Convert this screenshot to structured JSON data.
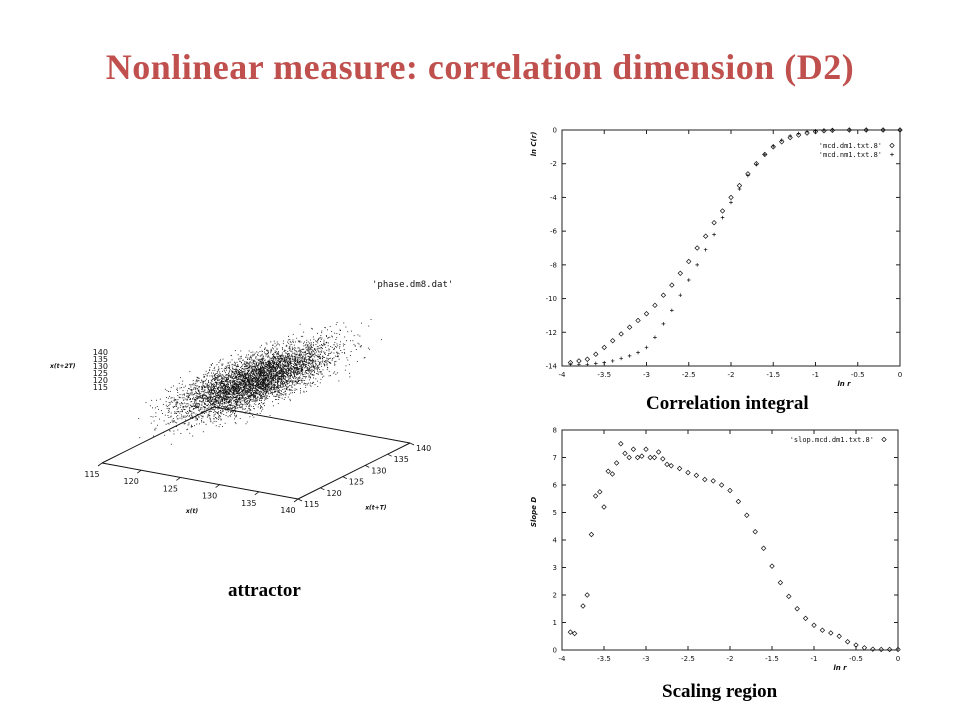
{
  "slide": {
    "title": "Nonlinear measure: correlation dimension (D2)",
    "captions": {
      "attractor": "attractor",
      "correlation": "Correlation integral",
      "scaling": "Scaling region"
    }
  },
  "colors": {
    "title": "#c0504d",
    "ink": "#111111"
  },
  "chart_data": [
    {
      "type": "scatter",
      "id": "attractor",
      "projection": "3d",
      "legend": [
        "'phase.dm8.dat'"
      ],
      "legend_position": "top-right",
      "xlabel": "x(t)",
      "ylabel": "x(t+T)",
      "zlabel": "x(t+2T)",
      "x_ticks": [
        115,
        120,
        125,
        130,
        135,
        140
      ],
      "y_ticks": [
        115,
        120,
        125,
        130,
        135,
        140
      ],
      "z_ticks": [
        115,
        120,
        125,
        130,
        135,
        140
      ],
      "xlim": [
        115,
        140
      ],
      "ylim": [
        115,
        140
      ],
      "zlim": [
        115,
        140
      ],
      "grid": false,
      "distribution": {
        "shape": "elongated diagonal cloud",
        "center": [
          129,
          129,
          129
        ],
        "spread_along_diagonal": 5.5,
        "spread_across": 2.2
      }
    },
    {
      "type": "scatter",
      "id": "correlation-integral",
      "xlabel": "ln r",
      "ylabel": "ln C(r)",
      "xlim": [
        -4,
        0
      ],
      "ylim": [
        -14,
        0
      ],
      "x_ticks": [
        "-4",
        "-3.5",
        "-3",
        "-2.5",
        "-2",
        "-1.5",
        "-1",
        "-0.5",
        "0"
      ],
      "y_ticks": [
        "0",
        "-2",
        "-4",
        "-6",
        "-8",
        "-10",
        "-12",
        "-14"
      ],
      "legend_position": "top-right",
      "grid": false,
      "series": [
        {
          "name": "'mcd.dm1.txt.8'",
          "marker": "diamond",
          "points": [
            [
              -3.9,
              -13.8
            ],
            [
              -3.8,
              -13.7
            ],
            [
              -3.7,
              -13.6
            ],
            [
              -3.6,
              -13.3
            ],
            [
              -3.5,
              -12.9
            ],
            [
              -3.4,
              -12.5
            ],
            [
              -3.3,
              -12.1
            ],
            [
              -3.2,
              -11.7
            ],
            [
              -3.1,
              -11.3
            ],
            [
              -3.0,
              -10.9
            ],
            [
              -2.9,
              -10.4
            ],
            [
              -2.8,
              -9.8
            ],
            [
              -2.7,
              -9.2
            ],
            [
              -2.6,
              -8.5
            ],
            [
              -2.5,
              -7.8
            ],
            [
              -2.4,
              -7.0
            ],
            [
              -2.3,
              -6.3
            ],
            [
              -2.2,
              -5.5
            ],
            [
              -2.1,
              -4.8
            ],
            [
              -2.0,
              -4.0
            ],
            [
              -1.9,
              -3.3
            ],
            [
              -1.8,
              -2.6
            ],
            [
              -1.7,
              -2.0
            ],
            [
              -1.6,
              -1.45
            ],
            [
              -1.5,
              -1.0
            ],
            [
              -1.4,
              -0.7
            ],
            [
              -1.3,
              -0.45
            ],
            [
              -1.2,
              -0.3
            ],
            [
              -1.1,
              -0.18
            ],
            [
              -1.0,
              -0.1
            ],
            [
              -0.9,
              -0.05
            ],
            [
              -0.8,
              -0.02
            ],
            [
              -0.6,
              0
            ],
            [
              -0.4,
              0
            ],
            [
              -0.2,
              0
            ],
            [
              0,
              0
            ]
          ]
        },
        {
          "name": "'mcd.nm1.txt.8'",
          "marker": "plus",
          "points": [
            [
              -3.9,
              -13.9
            ],
            [
              -3.8,
              -13.9
            ],
            [
              -3.7,
              -13.9
            ],
            [
              -3.6,
              -13.85
            ],
            [
              -3.5,
              -13.8
            ],
            [
              -3.4,
              -13.7
            ],
            [
              -3.3,
              -13.55
            ],
            [
              -3.2,
              -13.4
            ],
            [
              -3.1,
              -13.2
            ],
            [
              -3.0,
              -12.9
            ],
            [
              -2.9,
              -12.3
            ],
            [
              -2.8,
              -11.5
            ],
            [
              -2.7,
              -10.7
            ],
            [
              -2.6,
              -9.8
            ],
            [
              -2.5,
              -8.9
            ],
            [
              -2.4,
              -8.0
            ],
            [
              -2.3,
              -7.1
            ],
            [
              -2.2,
              -6.2
            ],
            [
              -2.1,
              -5.2
            ],
            [
              -2.0,
              -4.3
            ],
            [
              -1.9,
              -3.5
            ],
            [
              -1.8,
              -2.7
            ],
            [
              -1.7,
              -2.05
            ],
            [
              -1.6,
              -1.45
            ],
            [
              -1.5,
              -0.95
            ],
            [
              -1.4,
              -0.6
            ],
            [
              -1.3,
              -0.35
            ],
            [
              -1.2,
              -0.2
            ],
            [
              -1.1,
              -0.1
            ],
            [
              -1.0,
              -0.05
            ],
            [
              -0.9,
              -0.02
            ],
            [
              -0.8,
              0
            ],
            [
              -0.6,
              0
            ],
            [
              -0.4,
              0
            ],
            [
              -0.2,
              0
            ],
            [
              0,
              0
            ]
          ]
        }
      ]
    },
    {
      "type": "scatter",
      "id": "slope",
      "xlabel": "ln r",
      "ylabel": "Slope D",
      "xlim": [
        -4,
        0
      ],
      "ylim": [
        0,
        8
      ],
      "x_ticks": [
        "-4",
        "-3.5",
        "-3",
        "-2.5",
        "-2",
        "-1.5",
        "-1",
        "-0.5",
        "0"
      ],
      "y_ticks": [
        "0",
        "1",
        "2",
        "3",
        "4",
        "5",
        "6",
        "7",
        "8"
      ],
      "legend_position": "top-right",
      "grid": false,
      "series": [
        {
          "name": "'slop.mcd.dm1.txt.8'",
          "marker": "diamond",
          "points": [
            [
              -3.9,
              0.65
            ],
            [
              -3.85,
              0.6
            ],
            [
              -3.75,
              1.6
            ],
            [
              -3.7,
              2.0
            ],
            [
              -3.65,
              4.2
            ],
            [
              -3.6,
              5.6
            ],
            [
              -3.55,
              5.75
            ],
            [
              -3.5,
              5.2
            ],
            [
              -3.45,
              6.5
            ],
            [
              -3.4,
              6.4
            ],
            [
              -3.35,
              6.8
            ],
            [
              -3.3,
              7.5
            ],
            [
              -3.25,
              7.15
            ],
            [
              -3.2,
              7.0
            ],
            [
              -3.15,
              7.3
            ],
            [
              -3.1,
              7.0
            ],
            [
              -3.05,
              7.05
            ],
            [
              -3.0,
              7.3
            ],
            [
              -2.95,
              7.0
            ],
            [
              -2.9,
              7.0
            ],
            [
              -2.85,
              7.2
            ],
            [
              -2.8,
              6.95
            ],
            [
              -2.75,
              6.75
            ],
            [
              -2.7,
              6.7
            ],
            [
              -2.6,
              6.6
            ],
            [
              -2.5,
              6.45
            ],
            [
              -2.4,
              6.35
            ],
            [
              -2.3,
              6.2
            ],
            [
              -2.2,
              6.15
            ],
            [
              -2.1,
              6.0
            ],
            [
              -2.0,
              5.8
            ],
            [
              -1.9,
              5.4
            ],
            [
              -1.8,
              4.9
            ],
            [
              -1.7,
              4.3
            ],
            [
              -1.6,
              3.7
            ],
            [
              -1.5,
              3.05
            ],
            [
              -1.4,
              2.45
            ],
            [
              -1.3,
              1.95
            ],
            [
              -1.2,
              1.5
            ],
            [
              -1.1,
              1.15
            ],
            [
              -1.0,
              0.9
            ],
            [
              -0.9,
              0.72
            ],
            [
              -0.8,
              0.62
            ],
            [
              -0.7,
              0.5
            ],
            [
              -0.6,
              0.3
            ],
            [
              -0.5,
              0.18
            ],
            [
              -0.4,
              0.08
            ],
            [
              -0.3,
              0.03
            ],
            [
              -0.2,
              0.02
            ],
            [
              -0.1,
              0.02
            ],
            [
              0,
              0.02
            ]
          ]
        }
      ]
    }
  ]
}
